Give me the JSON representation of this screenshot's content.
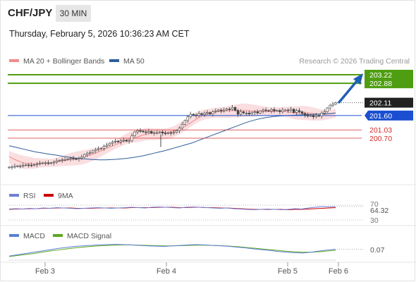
{
  "header": {
    "symbol": "CHF/JPY",
    "timeframe": "30 MIN",
    "datetime": "Thursday, February 5, 2026 10:36:23 AM CET"
  },
  "legend": {
    "ma20_label": "MA 20 + Bollinger Bands",
    "ma50_label": "MA 50",
    "copyright": "Research © 2026 Trading Central"
  },
  "colors": {
    "candle": "#444444",
    "bollinger_fill": "#f8d3d6",
    "ma20": "#f28b8b",
    "ma50": "#2c5d9b",
    "target_line": "#4f9e11",
    "pivot_line": "#1a4fd1",
    "support_line": "#d62d2d",
    "rsi_line": "#6f7fd6",
    "rsi_ma": "#cc0000",
    "macd_line": "#5b7fd6",
    "macd_signal": "#5da81d",
    "arrow": "#1f5fb0"
  },
  "price_levels": [
    {
      "value": 203.22,
      "label": "203.22",
      "kind": "target"
    },
    {
      "value": 202.88,
      "label": "202.88",
      "kind": "target"
    },
    {
      "value": 202.11,
      "label": "202.11",
      "kind": "last"
    },
    {
      "value": 201.6,
      "label": "201.60",
      "kind": "pivot"
    },
    {
      "value": 201.03,
      "label": "201.03",
      "kind": "support"
    },
    {
      "value": 200.7,
      "label": "200.70",
      "kind": "support"
    }
  ],
  "rsi_panel": {
    "label": "RSI",
    "ma_label": "9MA",
    "value_label": "64.32",
    "level_labels": [
      "70",
      "30"
    ]
  },
  "macd_panel": {
    "label": "MACD",
    "signal_label": "MACD Signal",
    "value_label": "0.07"
  },
  "chart_data": {
    "type": "candlestick",
    "x_tick_labels": [
      "Feb 3",
      "Feb 4",
      "Feb 5",
      "Feb 6"
    ],
    "close_series": [
      199.55,
      199.56,
      199.58,
      199.6,
      199.6,
      199.62,
      199.64,
      199.63,
      199.62,
      199.65,
      199.68,
      199.7,
      199.72,
      199.72,
      199.7,
      199.72,
      199.75,
      199.8,
      199.82,
      199.85,
      199.85,
      199.88,
      199.9,
      199.88,
      199.87,
      199.9,
      199.95,
      200.05,
      200.1,
      200.12,
      200.2,
      200.25,
      200.28,
      200.3,
      200.38,
      200.42,
      200.5,
      200.55,
      200.58,
      200.55,
      200.6,
      200.62,
      200.58,
      200.6,
      200.8,
      200.95,
      201.0,
      200.98,
      200.95,
      200.93,
      200.97,
      200.9,
      200.92,
      200.92,
      200.95,
      200.9,
      200.88,
      200.92,
      200.9,
      200.93,
      201.0,
      201.1,
      201.25,
      201.4,
      201.55,
      201.65,
      201.62,
      201.6,
      201.68,
      201.64,
      201.7,
      201.72,
      201.66,
      201.75,
      201.78,
      201.82,
      201.78,
      201.82,
      201.86,
      201.85,
      201.92,
      201.8,
      201.65,
      201.75,
      201.7,
      201.7,
      201.66,
      201.72,
      201.75,
      201.7,
      201.78,
      201.82,
      201.8,
      201.78,
      201.84,
      201.78,
      201.8,
      201.75,
      201.82,
      201.82,
      201.8,
      201.85,
      201.72,
      201.8,
      201.75,
      201.68,
      201.62,
      201.58,
      201.6,
      201.55,
      201.6,
      201.58,
      201.7,
      201.75,
      201.9,
      202.0,
      202.05,
      202.11
    ],
    "ma20": [
      199.98,
      199.9,
      199.85,
      199.8,
      199.75,
      199.72,
      199.7,
      199.7,
      199.68,
      199.68,
      199.7,
      199.7,
      199.72,
      199.72,
      199.72,
      199.73,
      199.75,
      199.78,
      199.8,
      199.82,
      199.84,
      199.86,
      199.88,
      199.9,
      199.92,
      199.95,
      199.98,
      200.02,
      200.06,
      200.1,
      200.15,
      200.2,
      200.25,
      200.3,
      200.35,
      200.4,
      200.45,
      200.5,
      200.55,
      200.6,
      200.65,
      200.7,
      200.72,
      200.74,
      200.78,
      200.82,
      200.86,
      200.88,
      200.9,
      200.9,
      200.92,
      200.92,
      200.92,
      200.93,
      200.95,
      200.96,
      201.0,
      201.05,
      201.1,
      201.15,
      201.22,
      201.3,
      201.38,
      201.45,
      201.52,
      201.58,
      201.62,
      201.66,
      201.7,
      201.73,
      201.75,
      201.76,
      201.77,
      201.78,
      201.79,
      201.8,
      201.8,
      201.8,
      201.8,
      201.8,
      201.8,
      201.78,
      201.77,
      201.76,
      201.76,
      201.76,
      201.76,
      201.76,
      201.76,
      201.76,
      201.77,
      201.77,
      201.76,
      201.75,
      201.74,
      201.72,
      201.7,
      201.7,
      201.7,
      201.7,
      201.7,
      201.69,
      201.68,
      201.67,
      201.66,
      201.65,
      201.65,
      201.66,
      201.67,
      201.68,
      201.7
    ],
    "ma50": [
      200.4,
      200.35,
      200.3,
      200.25,
      200.2,
      200.15,
      200.12,
      200.08,
      200.05,
      200.02,
      199.98,
      199.95,
      199.92,
      199.9,
      199.88,
      199.86,
      199.85,
      199.84,
      199.84,
      199.85,
      199.86,
      199.88,
      199.9,
      199.93,
      199.96,
      200.0,
      200.05,
      200.1,
      200.15,
      200.2,
      200.26,
      200.32,
      200.38,
      200.44,
      200.5,
      200.58,
      200.66,
      200.74,
      200.82,
      200.9,
      200.98,
      201.06,
      201.14,
      201.22,
      201.3,
      201.37,
      201.43,
      201.48,
      201.52,
      201.55,
      201.57,
      201.59,
      201.6,
      201.61,
      201.62,
      201.63,
      201.64,
      201.65,
      201.66,
      201.67,
      201.68,
      201.7
    ],
    "bb_width": 0.22,
    "rsi": [
      57,
      58,
      57,
      59,
      58,
      60,
      59,
      61,
      60,
      59,
      58,
      59,
      60,
      61,
      60,
      59,
      60,
      61,
      62,
      61,
      60,
      62,
      63,
      62,
      61,
      60,
      62,
      63,
      62,
      61,
      60,
      59,
      60,
      58,
      57,
      56,
      55,
      56,
      57,
      56,
      55,
      56,
      58,
      57,
      60,
      62,
      64,
      63,
      64.32
    ],
    "rsi_ma": [
      56,
      57,
      57,
      58,
      58,
      59,
      59,
      60,
      60,
      60,
      59,
      59,
      59,
      60,
      60,
      60,
      60,
      60,
      61,
      61,
      61,
      61,
      62,
      62,
      62,
      61,
      61,
      62,
      62,
      61,
      61,
      60,
      60,
      59,
      58,
      57,
      56,
      56,
      56,
      56,
      56,
      55,
      56,
      56,
      57,
      58,
      59,
      60,
      61
    ],
    "macd": [
      -0.2,
      -0.15,
      -0.1,
      -0.05,
      0.0,
      0.05,
      0.1,
      0.14,
      0.18,
      0.2,
      0.22,
      0.24,
      0.25,
      0.26,
      0.25,
      0.24,
      0.22,
      0.2,
      0.19,
      0.18,
      0.2,
      0.22,
      0.24,
      0.25,
      0.24,
      0.22,
      0.2,
      0.18,
      0.15,
      0.12,
      0.08,
      0.05,
      0.02,
      -0.02,
      -0.05,
      -0.07,
      -0.08,
      -0.05,
      0.0,
      0.04,
      0.07
    ],
    "macd_signal": [
      -0.22,
      -0.18,
      -0.14,
      -0.1,
      -0.05,
      0.0,
      0.04,
      0.08,
      0.12,
      0.15,
      0.18,
      0.2,
      0.22,
      0.23,
      0.24,
      0.24,
      0.23,
      0.22,
      0.21,
      0.2,
      0.2,
      0.21,
      0.22,
      0.23,
      0.23,
      0.22,
      0.21,
      0.19,
      0.17,
      0.14,
      0.11,
      0.08,
      0.05,
      0.02,
      -0.01,
      -0.03,
      -0.05,
      -0.05,
      -0.03,
      0.0,
      0.03
    ]
  }
}
